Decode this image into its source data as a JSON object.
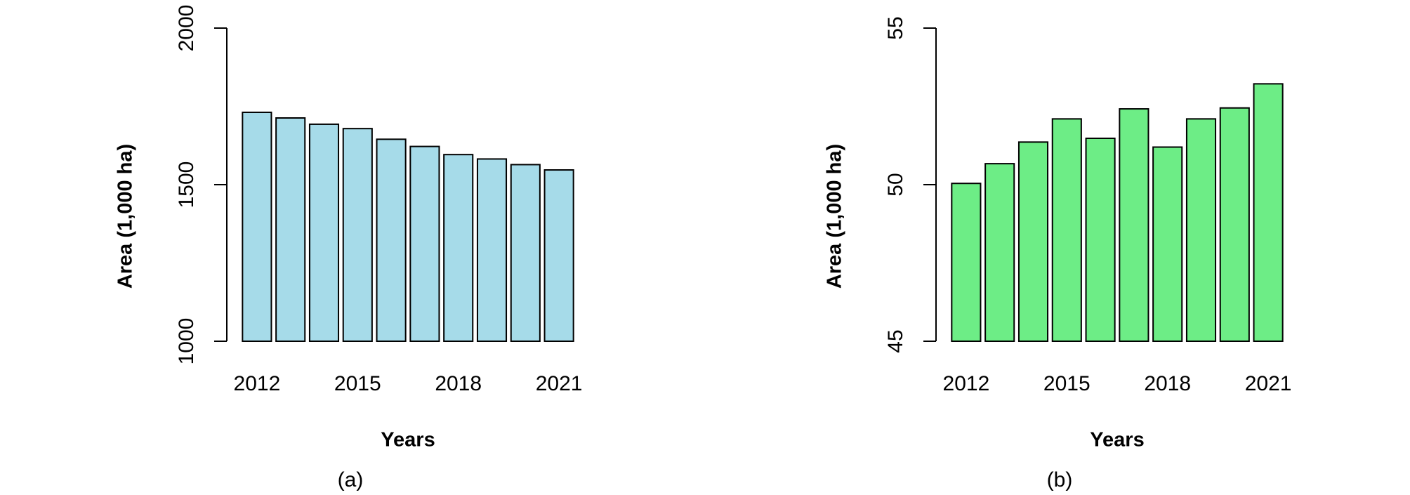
{
  "chart_data": [
    {
      "type": "bar",
      "caption": "(a)",
      "xlabel": "Years",
      "ylabel": "Area (1,000 ha)",
      "categories": [
        "2012",
        null,
        null,
        "2015",
        null,
        null,
        "2018",
        null,
        null,
        "2021"
      ],
      "values": [
        1731,
        1713,
        1693,
        1679,
        1645,
        1622,
        1596,
        1582,
        1564,
        1547
      ],
      "color": "#a6dbe9",
      "ylim": [
        1000,
        2000
      ],
      "yticks": [
        1000,
        1500,
        2000
      ]
    },
    {
      "type": "bar",
      "caption": "(b)",
      "xlabel": "Years",
      "ylabel": "Area (1,000 ha)",
      "categories": [
        "2012",
        null,
        null,
        "2015",
        null,
        null,
        "2018",
        null,
        null,
        "2021"
      ],
      "values": [
        50.04,
        50.67,
        51.36,
        52.1,
        51.48,
        52.42,
        51.2,
        52.1,
        52.45,
        53.22
      ],
      "color": "#6ded86",
      "ylim": [
        45,
        55
      ],
      "yticks": [
        45,
        50,
        55
      ]
    }
  ]
}
